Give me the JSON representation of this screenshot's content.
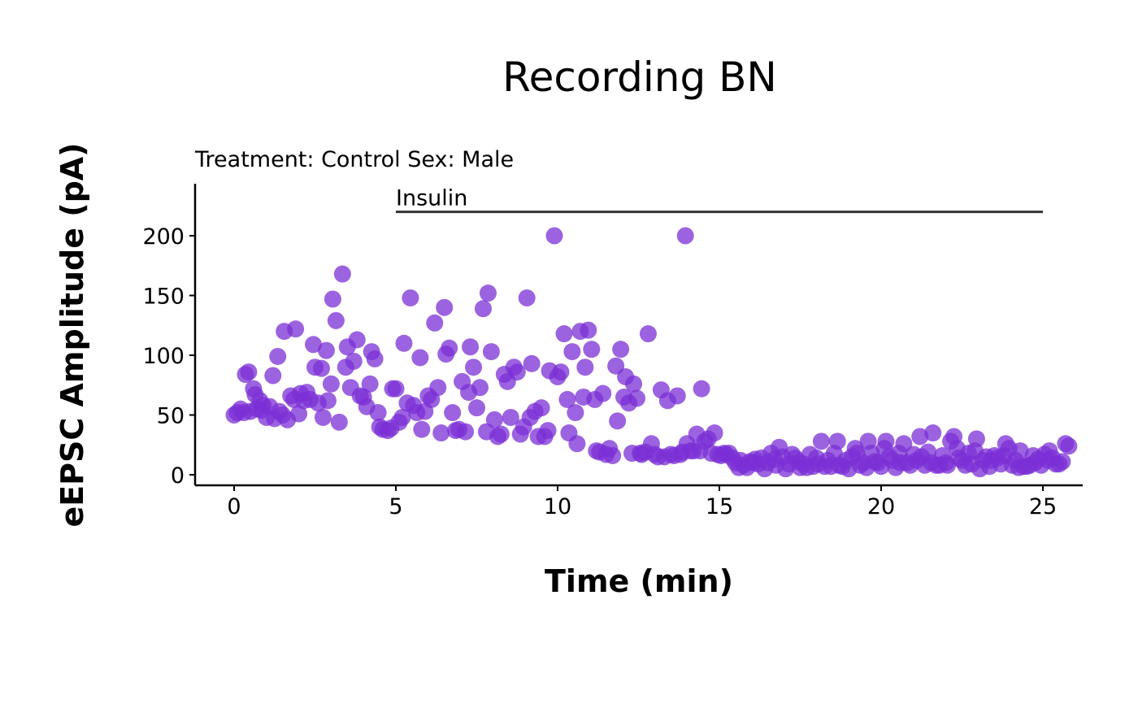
{
  "chart_data": {
    "type": "scatter",
    "title": "Recording BN",
    "subtitle": "Treatment: Control  Sex: Male",
    "xlabel": "Time (min)",
    "ylabel": "eEPSC Amplitude (pA)",
    "xlim": [
      -1.2,
      26.2
    ],
    "ylim": [
      -8,
      242
    ],
    "xticks": [
      0,
      5,
      10,
      15,
      20,
      25
    ],
    "yticks": [
      0,
      50,
      100,
      150,
      200
    ],
    "grid": false,
    "legend": "none",
    "point_color": "#7B2FD6",
    "bar_color": "#333333",
    "annotation": {
      "label": "Insulin",
      "x_start": 5,
      "x_end": 25,
      "y": 220
    },
    "points": [
      [
        0.0,
        50
      ],
      [
        0.1,
        52
      ],
      [
        0.2,
        55
      ],
      [
        0.3,
        52
      ],
      [
        0.35,
        84
      ],
      [
        0.45,
        86
      ],
      [
        0.5,
        53
      ],
      [
        0.6,
        72
      ],
      [
        0.65,
        67
      ],
      [
        0.7,
        55
      ],
      [
        0.8,
        62
      ],
      [
        0.85,
        54
      ],
      [
        0.9,
        58
      ],
      [
        1.0,
        48
      ],
      [
        1.1,
        57
      ],
      [
        1.2,
        83
      ],
      [
        1.25,
        47
      ],
      [
        1.35,
        99
      ],
      [
        1.4,
        53
      ],
      [
        1.5,
        50
      ],
      [
        1.55,
        120
      ],
      [
        1.65,
        46
      ],
      [
        1.75,
        66
      ],
      [
        1.85,
        63
      ],
      [
        1.9,
        122
      ],
      [
        2.0,
        51
      ],
      [
        2.05,
        68
      ],
      [
        2.15,
        62
      ],
      [
        2.25,
        69
      ],
      [
        2.35,
        63
      ],
      [
        2.45,
        109
      ],
      [
        2.5,
        90
      ],
      [
        2.6,
        60
      ],
      [
        2.7,
        89
      ],
      [
        2.75,
        48
      ],
      [
        2.85,
        104
      ],
      [
        2.9,
        62
      ],
      [
        3.0,
        76
      ],
      [
        3.05,
        147
      ],
      [
        3.15,
        129
      ],
      [
        3.25,
        44
      ],
      [
        3.35,
        168
      ],
      [
        3.45,
        90
      ],
      [
        3.5,
        107
      ],
      [
        3.6,
        73
      ],
      [
        3.7,
        95
      ],
      [
        3.8,
        113
      ],
      [
        3.9,
        66
      ],
      [
        4.0,
        65
      ],
      [
        4.1,
        57
      ],
      [
        4.2,
        76
      ],
      [
        4.25,
        103
      ],
      [
        4.35,
        97
      ],
      [
        4.45,
        52
      ],
      [
        4.5,
        40
      ],
      [
        4.6,
        38
      ],
      [
        4.75,
        37
      ],
      [
        4.85,
        39
      ],
      [
        4.9,
        72
      ],
      [
        5.0,
        72
      ],
      [
        5.1,
        44
      ],
      [
        5.2,
        48
      ],
      [
        5.25,
        110
      ],
      [
        5.35,
        60
      ],
      [
        5.45,
        148
      ],
      [
        5.55,
        58
      ],
      [
        5.65,
        52
      ],
      [
        5.75,
        98
      ],
      [
        5.8,
        38
      ],
      [
        5.9,
        53
      ],
      [
        6.0,
        66
      ],
      [
        6.1,
        63
      ],
      [
        6.2,
        127
      ],
      [
        6.3,
        73
      ],
      [
        6.4,
        35
      ],
      [
        6.5,
        140
      ],
      [
        6.55,
        101
      ],
      [
        6.65,
        106
      ],
      [
        6.75,
        52
      ],
      [
        6.85,
        37
      ],
      [
        6.95,
        38
      ],
      [
        7.05,
        78
      ],
      [
        7.15,
        36
      ],
      [
        7.25,
        69
      ],
      [
        7.3,
        107
      ],
      [
        7.4,
        90
      ],
      [
        7.5,
        56
      ],
      [
        7.6,
        73
      ],
      [
        7.7,
        139
      ],
      [
        7.8,
        36
      ],
      [
        7.85,
        152
      ],
      [
        7.95,
        103
      ],
      [
        8.05,
        46
      ],
      [
        8.15,
        32
      ],
      [
        8.25,
        34
      ],
      [
        8.35,
        84
      ],
      [
        8.45,
        78
      ],
      [
        8.55,
        48
      ],
      [
        8.65,
        90
      ],
      [
        8.75,
        86
      ],
      [
        8.85,
        34
      ],
      [
        8.95,
        40
      ],
      [
        9.05,
        148
      ],
      [
        9.15,
        48
      ],
      [
        9.2,
        93
      ],
      [
        9.3,
        53
      ],
      [
        9.4,
        32
      ],
      [
        9.5,
        56
      ],
      [
        9.6,
        32
      ],
      [
        9.7,
        37
      ],
      [
        9.75,
        87
      ],
      [
        9.9,
        200
      ],
      [
        10.0,
        82
      ],
      [
        10.1,
        86
      ],
      [
        10.2,
        118
      ],
      [
        10.3,
        63
      ],
      [
        10.35,
        35
      ],
      [
        10.45,
        103
      ],
      [
        10.55,
        52
      ],
      [
        10.6,
        26
      ],
      [
        10.7,
        120
      ],
      [
        10.8,
        65
      ],
      [
        10.85,
        90
      ],
      [
        10.95,
        121
      ],
      [
        11.05,
        105
      ],
      [
        11.15,
        63
      ],
      [
        11.2,
        20
      ],
      [
        11.3,
        19
      ],
      [
        11.4,
        68
      ],
      [
        11.5,
        17
      ],
      [
        11.6,
        22
      ],
      [
        11.7,
        16
      ],
      [
        11.8,
        91
      ],
      [
        11.85,
        45
      ],
      [
        11.95,
        105
      ],
      [
        12.05,
        65
      ],
      [
        12.1,
        82
      ],
      [
        12.2,
        60
      ],
      [
        12.3,
        18
      ],
      [
        12.35,
        76
      ],
      [
        12.45,
        64
      ],
      [
        12.55,
        18
      ],
      [
        12.6,
        17
      ],
      [
        12.7,
        19
      ],
      [
        12.8,
        118
      ],
      [
        12.9,
        26
      ],
      [
        13.0,
        17
      ],
      [
        13.1,
        15
      ],
      [
        13.2,
        71
      ],
      [
        13.3,
        15
      ],
      [
        13.4,
        62
      ],
      [
        13.5,
        17
      ],
      [
        13.6,
        16
      ],
      [
        13.7,
        66
      ],
      [
        13.8,
        17
      ],
      [
        13.85,
        19
      ],
      [
        13.95,
        200
      ],
      [
        14.0,
        26
      ],
      [
        14.1,
        20
      ],
      [
        14.2,
        20
      ],
      [
        14.3,
        34
      ],
      [
        14.4,
        20
      ],
      [
        14.45,
        72
      ],
      [
        14.55,
        28
      ],
      [
        14.65,
        30
      ],
      [
        14.75,
        18
      ],
      [
        14.85,
        35
      ],
      [
        14.95,
        17
      ],
      [
        15.05,
        16
      ],
      [
        15.15,
        18
      ],
      [
        15.2,
        17
      ],
      [
        15.3,
        18
      ],
      [
        15.4,
        14
      ],
      [
        15.5,
        10
      ],
      [
        15.6,
        6
      ],
      [
        15.65,
        12
      ],
      [
        15.75,
        8
      ],
      [
        15.85,
        6
      ],
      [
        15.95,
        11
      ],
      [
        16.05,
        10
      ],
      [
        16.1,
        13
      ],
      [
        16.2,
        9
      ],
      [
        16.3,
        14
      ],
      [
        16.4,
        5
      ],
      [
        16.5,
        10
      ],
      [
        16.6,
        18
      ],
      [
        16.7,
        13
      ],
      [
        16.75,
        8
      ],
      [
        16.85,
        23
      ],
      [
        16.95,
        15
      ],
      [
        17.05,
        5
      ],
      [
        17.15,
        9
      ],
      [
        17.25,
        17
      ],
      [
        17.35,
        14
      ],
      [
        17.45,
        11
      ],
      [
        17.5,
        6
      ],
      [
        17.6,
        9
      ],
      [
        17.7,
        6
      ],
      [
        17.8,
        17
      ],
      [
        17.9,
        7
      ],
      [
        18.0,
        14
      ],
      [
        18.05,
        9
      ],
      [
        18.15,
        28
      ],
      [
        18.25,
        7
      ],
      [
        18.35,
        12
      ],
      [
        18.45,
        7
      ],
      [
        18.55,
        18
      ],
      [
        18.65,
        28
      ],
      [
        18.7,
        8
      ],
      [
        18.8,
        7
      ],
      [
        18.9,
        12
      ],
      [
        19.0,
        5
      ],
      [
        19.1,
        15
      ],
      [
        19.2,
        22
      ],
      [
        19.25,
        18
      ],
      [
        19.35,
        8
      ],
      [
        19.45,
        10
      ],
      [
        19.55,
        6
      ],
      [
        19.6,
        28
      ],
      [
        19.7,
        18
      ],
      [
        19.8,
        11
      ],
      [
        19.9,
        10
      ],
      [
        20.0,
        7
      ],
      [
        20.1,
        22
      ],
      [
        20.15,
        28
      ],
      [
        20.25,
        15
      ],
      [
        20.35,
        12
      ],
      [
        20.45,
        6
      ],
      [
        20.55,
        18
      ],
      [
        20.6,
        10
      ],
      [
        20.7,
        26
      ],
      [
        20.8,
        10
      ],
      [
        20.9,
        8
      ],
      [
        21.0,
        17
      ],
      [
        21.1,
        12
      ],
      [
        21.2,
        32
      ],
      [
        21.25,
        15
      ],
      [
        21.35,
        8
      ],
      [
        21.45,
        19
      ],
      [
        21.55,
        10
      ],
      [
        21.6,
        35
      ],
      [
        21.7,
        8
      ],
      [
        21.8,
        8
      ],
      [
        21.9,
        16
      ],
      [
        22.0,
        10
      ],
      [
        22.05,
        8
      ],
      [
        22.15,
        28
      ],
      [
        22.25,
        32
      ],
      [
        22.35,
        22
      ],
      [
        22.4,
        14
      ],
      [
        22.5,
        12
      ],
      [
        22.6,
        8
      ],
      [
        22.7,
        18
      ],
      [
        22.8,
        9
      ],
      [
        22.9,
        20
      ],
      [
        22.95,
        30
      ],
      [
        23.05,
        5
      ],
      [
        23.15,
        12
      ],
      [
        23.25,
        15
      ],
      [
        23.35,
        7
      ],
      [
        23.4,
        12
      ],
      [
        23.5,
        16
      ],
      [
        23.6,
        14
      ],
      [
        23.7,
        9
      ],
      [
        23.8,
        16
      ],
      [
        23.85,
        26
      ],
      [
        23.95,
        22
      ],
      [
        24.05,
        8
      ],
      [
        24.15,
        12
      ],
      [
        24.25,
        6
      ],
      [
        24.3,
        20
      ],
      [
        24.4,
        7
      ],
      [
        24.5,
        7
      ],
      [
        24.6,
        8
      ],
      [
        24.7,
        16
      ],
      [
        24.75,
        10
      ],
      [
        24.85,
        13
      ],
      [
        24.95,
        8
      ],
      [
        25.05,
        17
      ],
      [
        25.15,
        12
      ],
      [
        25.2,
        20
      ],
      [
        25.3,
        14
      ],
      [
        25.4,
        9
      ],
      [
        25.5,
        9
      ],
      [
        25.6,
        11
      ],
      [
        25.7,
        26
      ],
      [
        25.8,
        24
      ]
    ]
  }
}
